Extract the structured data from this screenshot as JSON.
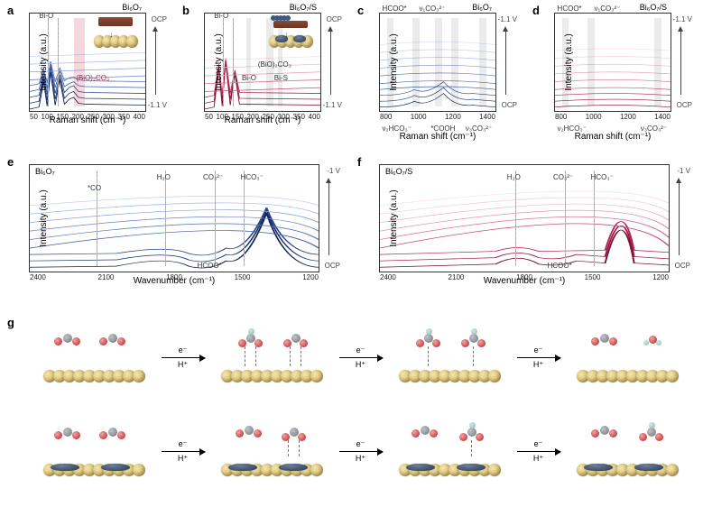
{
  "panels": {
    "a": {
      "label": "a",
      "title": "Bi₆O₇",
      "y_label": "Intensity (a.u.)",
      "x_label": "Raman shift (cm⁻¹)",
      "ticks": [
        "50",
        "100",
        "150",
        "200",
        "250",
        "300",
        "350",
        "400"
      ],
      "markers": {
        "biO_left": "Bi-O",
        "BiO2CO3": "(BiO)₂CO₃"
      },
      "side_top": "OCP",
      "side_bot": "-1.1 V",
      "line_color": "#1f3e8b",
      "gradient_end": "#b9c8eb"
    },
    "b": {
      "label": "b",
      "title": "Bi₆O₇/S",
      "y_label": "Intensity (a.u.)",
      "x_label": "Raman shift (cm⁻¹)",
      "ticks": [
        "50",
        "100",
        "150",
        "200",
        "250",
        "300",
        "350",
        "400"
      ],
      "markers": {
        "biO_left": "Bi-O",
        "BiO2CO3": "(BiO)₂CO₃",
        "biO_mid": "Bi-O",
        "biS": "Bi-S"
      },
      "side_top": "OCP",
      "side_bot": "-1.1 V",
      "line_color": "#c02050",
      "gradient_end": "#f2c9d5"
    },
    "c": {
      "label": "c",
      "title": "Bi₆O₇",
      "y_label": "Intensity (a.u.)",
      "x_label": "Raman shift (cm⁻¹)",
      "ticks": [
        "800",
        "1000",
        "1200",
        "1400"
      ],
      "markers_top": {
        "hcoo": "HCOO*",
        "v1co3": "ν₁CO₃²⁻"
      },
      "markers_bot": {
        "v2hco3": "ν₂HCO₃⁻",
        "cooh": "*COOH",
        "v3co3": "ν₃CO₃²⁻"
      },
      "side_top": "-1.1 V",
      "side_bot": "OCP",
      "line_color": "#1f3e8b"
    },
    "d": {
      "label": "d",
      "title": "Bi₆O₇/S",
      "y_label": "Intensity (a.u.)",
      "x_label": "Raman shift (cm⁻¹)",
      "ticks": [
        "800",
        "1000",
        "1200",
        "1400"
      ],
      "markers_top": {
        "hcoo": "HCOO*",
        "v1co3": "ν₁CO₃²⁻"
      },
      "markers_bot": {
        "v2hco3": "ν₂HCO₃⁻",
        "v3co3": "ν₃CO₃²⁻"
      },
      "side_top": "-1.1 V",
      "side_bot": "OCP",
      "line_color": "#c02050"
    },
    "e": {
      "label": "e",
      "title": "Bi₆O₇",
      "y_label": "Intensity (a.u.)",
      "x_label": "Wavenumber (cm⁻¹)",
      "ticks": [
        "2400",
        "2100",
        "1800",
        "1500",
        "1200"
      ],
      "markers": {
        "co": "*CO",
        "h2o": "H₂O",
        "co3": "CO₃²⁻",
        "hco3": "HCO₃⁻",
        "hcoo": "HCOO*"
      },
      "side_top": "-1 V",
      "side_bot": "OCP",
      "line_color": "#1f3e8b"
    },
    "f": {
      "label": "f",
      "title": "Bi₆O₇/S",
      "y_label": "Intensity (a.u.)",
      "x_label": "Wavenumber (cm⁻¹)",
      "ticks": [
        "2400",
        "2100",
        "1800",
        "1500",
        "1200"
      ],
      "markers": {
        "h2o": "H₂O",
        "co3": "CO₃²⁻",
        "hco3": "HCO₃⁻",
        "hcoo": "HCOO*"
      },
      "side_top": "-1 V",
      "side_bot": "OCP",
      "line_color": "#c02050"
    },
    "g": {
      "label": "g",
      "arrow_top": "e⁻",
      "arrow_bot": "H⁺"
    }
  },
  "colors": {
    "atom_gold": "#d2b96a",
    "atom_dark": "#34465f",
    "atom_grey": "#6e7479",
    "atom_red": "#b32020",
    "atom_teal": "#8db8b5"
  }
}
